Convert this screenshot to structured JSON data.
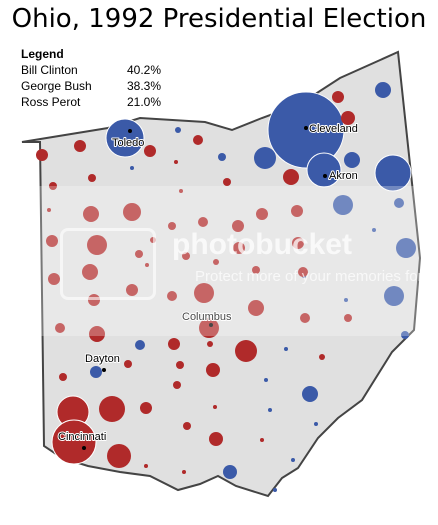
{
  "title": "Ohio, 1992 Presidential Election",
  "legend": {
    "title": "Legend",
    "entries": [
      {
        "candidate": "Bill Clinton",
        "share": "40.2%"
      },
      {
        "candidate": "George Bush",
        "share": "38.3%"
      },
      {
        "candidate": "Ross Perot",
        "share": "21.0%"
      }
    ]
  },
  "colors": {
    "state_fill": "#e0e0e0",
    "state_border": "#444444",
    "democrat": "#3b5aa8",
    "republican": "#b02a2a"
  },
  "cities": [
    "Toledo",
    "Cleveland",
    "Akron",
    "Columbus",
    "Dayton",
    "Cincinnati"
  ],
  "watermark": {
    "brand": "photobucket",
    "tagline": "Protect more of your memories for less!"
  }
}
